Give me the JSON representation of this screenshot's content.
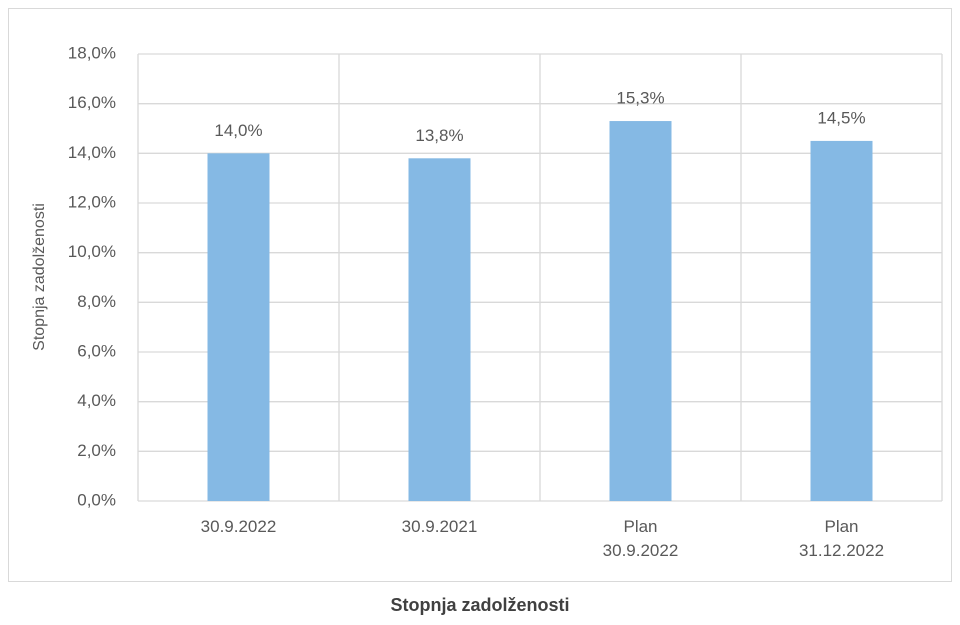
{
  "chart_data": {
    "type": "bar",
    "title": "Stopnja zadolženosti",
    "y_label": "Stopnja zadolženosti",
    "categories": [
      "30.9.2022",
      "30.9.2021",
      "Plan\n30.9.2022",
      "Plan\n31.12.2022"
    ],
    "values": [
      14.0,
      13.8,
      15.3,
      14.5
    ],
    "value_labels": [
      "14,0%",
      "13,8%",
      "15,3%",
      "14,5%"
    ],
    "color": "#85b9e4",
    "ylim": [
      0,
      18
    ],
    "yticks": [
      {
        "value": 0,
        "label": "0,0%"
      },
      {
        "value": 2,
        "label": "2,0%"
      },
      {
        "value": 4,
        "label": "4,0%"
      },
      {
        "value": 6,
        "label": "6,0%"
      },
      {
        "value": 8,
        "label": "8,0%"
      },
      {
        "value": 10,
        "label": "10,0%"
      },
      {
        "value": 12,
        "label": "12,0%"
      },
      {
        "value": 14,
        "label": "14,0%"
      },
      {
        "value": 16,
        "label": "16,0%"
      },
      {
        "value": 18,
        "label": "18,0%"
      }
    ],
    "grid": true
  }
}
